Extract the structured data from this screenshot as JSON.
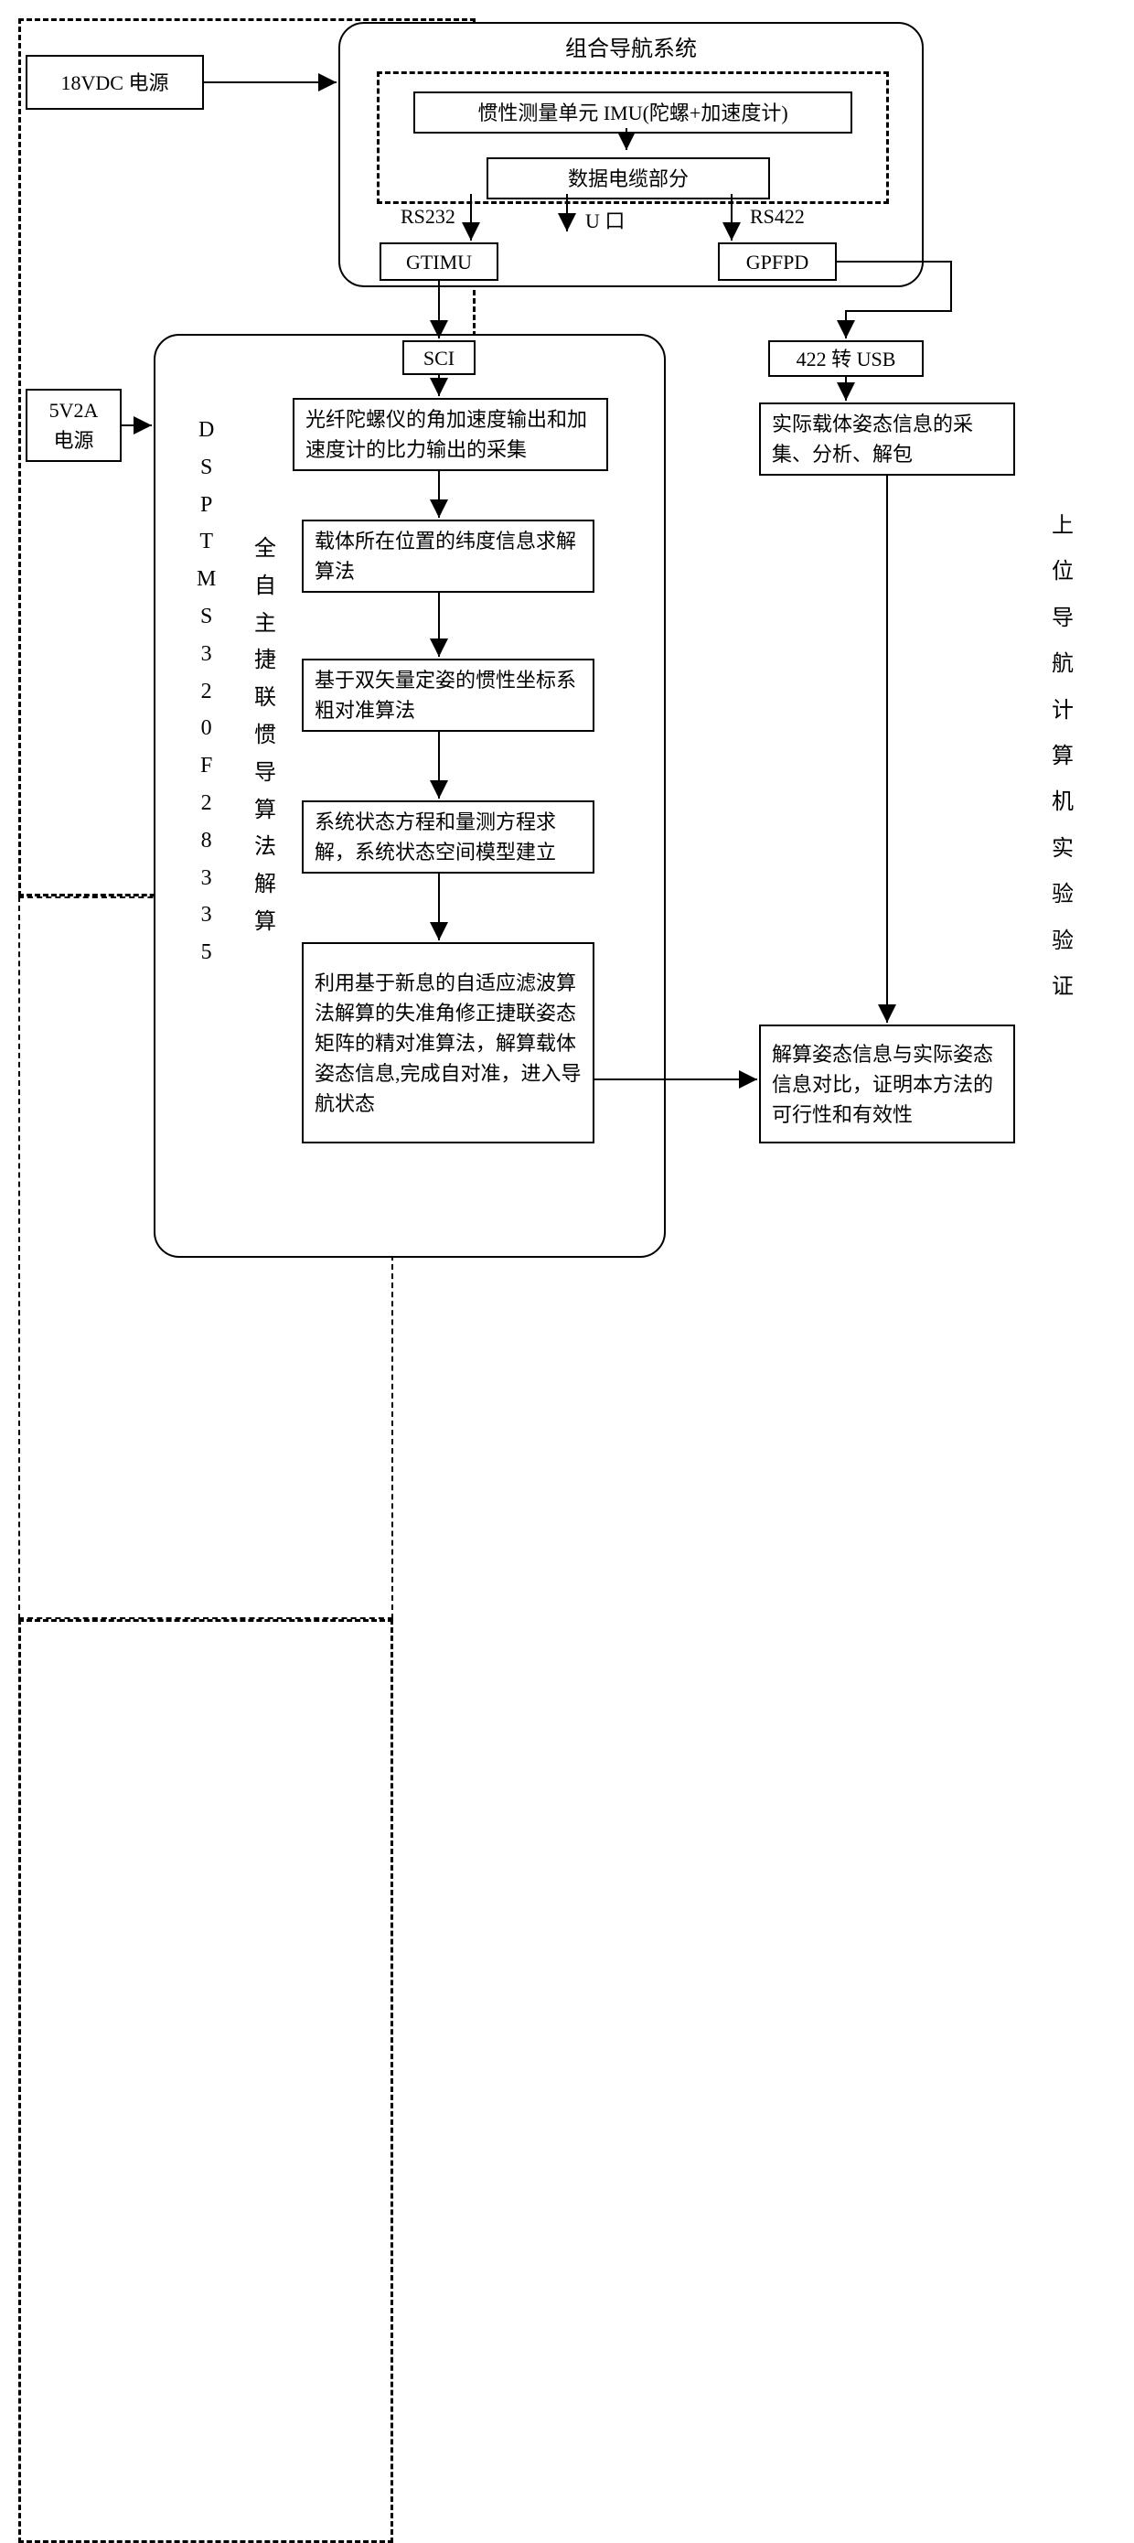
{
  "colors": {
    "stroke": "#000000",
    "bg": "#ffffff"
  },
  "font_family": "SimSun",
  "power18": "18VDC 电源",
  "power5": "5V2A\n电源",
  "nav_system": {
    "title": "组合导航系统",
    "imu": "惯性测量单元 IMU(陀螺+加速度计)",
    "cable": "数据电缆部分",
    "ports": {
      "rs232": "RS232",
      "u": "U 口",
      "rs422": "RS422"
    },
    "gtimu": "GTIMU",
    "gpfpd": "GPFPD"
  },
  "left": {
    "dsp_label": "DSPTMS320F28335",
    "algo_label": "全自主捷联惯导算法解算",
    "sci": "SCI",
    "step1": "光纤陀螺仪的角加速度输出和加速度计的比力输出的采集",
    "step2": "载体所在位置的纬度信息求解算法",
    "step3": "基于双矢量定姿的惯性坐标系粗对准算法",
    "step4": "系统状态方程和量测方程求解，系统状态空间模型建立",
    "step5": "利用基于新息的自适应滤波算法解算的失准角修正捷联姿态矩阵的精对准算法，解算载体姿态信息,完成自对准，进入导航状态"
  },
  "right": {
    "label": "上位导航计算机实验验证",
    "usb": "422 转 USB",
    "collect": "实际载体姿态信息的采集、分析、解包",
    "compare": "解算姿态信息与实际姿态信息对比，证明本方法的可行性和有效性"
  }
}
